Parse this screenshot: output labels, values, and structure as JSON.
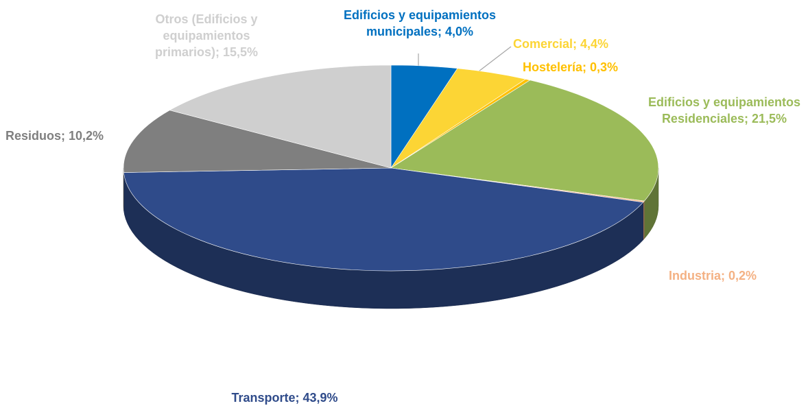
{
  "chart_data": {
    "type": "pie3d",
    "values": [
      4.0,
      4.4,
      0.3,
      21.5,
      0.2,
      43.9,
      10.2,
      15.5
    ],
    "value_labels": [
      "Edificios y equipamientos municipales; 4,0%",
      "Comercial; 4,4%",
      "Hostelería; 0,3%",
      "Edificios y equipamientos Residenciales; 21,5%",
      "Industria; 0,2%",
      "Transporte; 43,9%",
      "Residuos; 10,2%",
      "Otros (Edificios y equipamientos primarios); 15,5%"
    ],
    "colors": [
      "#0070c0",
      "#fcd535",
      "#ffc000",
      "#9bbb59",
      "#f4b183",
      "#2f4b8a",
      "#7f7f7f",
      "#cfcfcf"
    ],
    "legend": false
  }
}
